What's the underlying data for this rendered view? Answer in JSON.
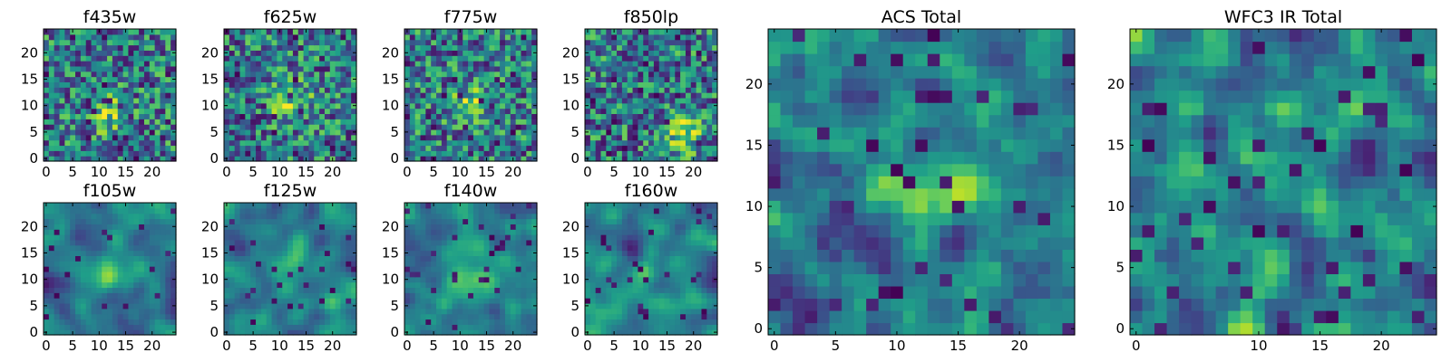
{
  "colors": {
    "low": "#440154",
    "mid": "#21918c",
    "high": "#fde725",
    "axes": "#000000",
    "background": "#ffffff"
  },
  "chart_data": [
    {
      "id": "f435w",
      "type": "heatmap",
      "colormap": "viridis",
      "title": "f435w",
      "grid_size": 25,
      "xlim": [
        0,
        24
      ],
      "ylim": [
        0,
        24
      ],
      "xticks": [
        "0",
        "5",
        "10",
        "15",
        "20"
      ],
      "yticks": [
        "0",
        "5",
        "10",
        "15",
        "20"
      ],
      "texture": "noisy",
      "bright_center": [
        12,
        8
      ],
      "dark_fraction": 0.07
    },
    {
      "id": "f625w",
      "type": "heatmap",
      "colormap": "viridis",
      "title": "f625w",
      "grid_size": 25,
      "xlim": [
        0,
        24
      ],
      "ylim": [
        0,
        24
      ],
      "xticks": [
        "0",
        "5",
        "10",
        "15",
        "20"
      ],
      "yticks": [
        "0",
        "5",
        "10",
        "15",
        "20"
      ],
      "texture": "noisy",
      "bright_center": [
        12,
        11
      ],
      "dark_fraction": 0.07
    },
    {
      "id": "f775w",
      "type": "heatmap",
      "colormap": "viridis",
      "title": "f775w",
      "grid_size": 25,
      "xlim": [
        0,
        24
      ],
      "ylim": [
        0,
        24
      ],
      "xticks": [
        "0",
        "5",
        "10",
        "15",
        "20"
      ],
      "yticks": [
        "0",
        "5",
        "10",
        "15",
        "20"
      ],
      "texture": "noisy",
      "bright_center": [
        12,
        10
      ],
      "dark_fraction": 0.07
    },
    {
      "id": "f850lp",
      "type": "heatmap",
      "colormap": "viridis",
      "title": "f850lp",
      "grid_size": 25,
      "xlim": [
        0,
        24
      ],
      "ylim": [
        0,
        24
      ],
      "xticks": [
        "0",
        "5",
        "10",
        "15",
        "20"
      ],
      "yticks": [
        "0",
        "5",
        "10",
        "15",
        "20"
      ],
      "texture": "noisy",
      "bright_center": [
        18,
        5
      ],
      "dark_fraction": 0.07
    },
    {
      "id": "f105w",
      "type": "heatmap",
      "colormap": "viridis",
      "title": "f105w",
      "grid_size": 25,
      "xlim": [
        0,
        24
      ],
      "ylim": [
        0,
        24
      ],
      "xticks": [
        "0",
        "5",
        "10",
        "15",
        "20"
      ],
      "yticks": [
        "0",
        "5",
        "10",
        "15",
        "20"
      ],
      "texture": "smooth",
      "bright_center": [
        12,
        12
      ],
      "dark_fraction": 0.04
    },
    {
      "id": "f125w",
      "type": "heatmap",
      "colormap": "viridis",
      "title": "f125w",
      "grid_size": 25,
      "xlim": [
        0,
        24
      ],
      "ylim": [
        0,
        24
      ],
      "xticks": [
        "0",
        "5",
        "10",
        "15",
        "20"
      ],
      "yticks": [
        "0",
        "5",
        "10",
        "15",
        "20"
      ],
      "texture": "smooth",
      "bright_center": [
        12,
        12
      ],
      "dark_fraction": 0.04
    },
    {
      "id": "f140w",
      "type": "heatmap",
      "colormap": "viridis",
      "title": "f140w",
      "grid_size": 25,
      "xlim": [
        0,
        24
      ],
      "ylim": [
        0,
        24
      ],
      "xticks": [
        "0",
        "5",
        "10",
        "15",
        "20"
      ],
      "yticks": [
        "0",
        "5",
        "10",
        "15",
        "20"
      ],
      "texture": "smooth",
      "bright_center": [
        12,
        10
      ],
      "dark_fraction": 0.04
    },
    {
      "id": "f160w",
      "type": "heatmap",
      "colormap": "viridis",
      "title": "f160w",
      "grid_size": 25,
      "xlim": [
        0,
        24
      ],
      "ylim": [
        0,
        24
      ],
      "xticks": [
        "0",
        "5",
        "10",
        "15",
        "20"
      ],
      "yticks": [
        "0",
        "5",
        "10",
        "15",
        "20"
      ],
      "texture": "smooth",
      "bright_center": [
        13,
        11
      ],
      "dark_fraction": 0.04
    },
    {
      "id": "acs-total",
      "type": "heatmap",
      "colormap": "viridis",
      "title": "ACS Total",
      "grid_size": 25,
      "xlim": [
        0,
        24
      ],
      "ylim": [
        0,
        24
      ],
      "xticks": [
        "0",
        "5",
        "10",
        "15",
        "20"
      ],
      "yticks": [
        "0",
        "5",
        "10",
        "15",
        "20"
      ],
      "texture": "blocky",
      "bright_center": [
        14,
        11
      ],
      "dark_fraction": 0.05
    },
    {
      "id": "wfc3-ir-total",
      "type": "heatmap",
      "colormap": "viridis",
      "title": "WFC3 IR Total",
      "grid_size": 25,
      "xlim": [
        0,
        24
      ],
      "ylim": [
        0,
        24
      ],
      "xticks": [
        "0",
        "10",
        "15",
        "20"
      ],
      "yticks": [
        "0",
        "5",
        "10",
        "15",
        "20"
      ],
      "texture": "blocky",
      "bright_center": [
        12,
        12
      ],
      "dark_fraction": 0.05
    }
  ]
}
